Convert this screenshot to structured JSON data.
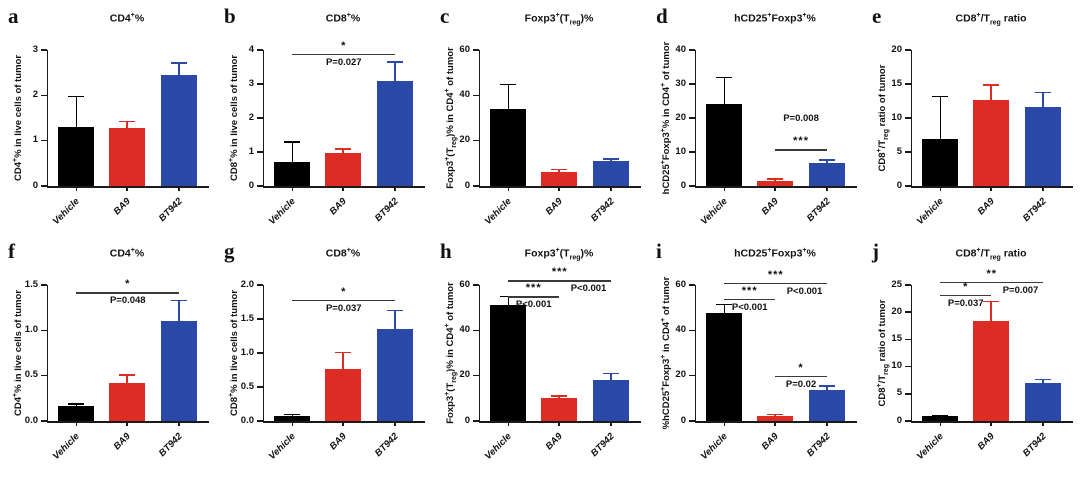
{
  "figure": {
    "background": "#ffffff",
    "bar_colors": [
      "#000000",
      "#dd2c23",
      "#2a49a7"
    ],
    "axis_color": "#1a1a1a"
  },
  "chart_data": [
    {
      "type": "bar",
      "panel_label": "a",
      "title": "CD4^+^%",
      "ylabel": "CD4^+^% in live cells of tumor",
      "categories": [
        "Vehicle",
        "BA9",
        "BT942"
      ],
      "values": [
        1.3,
        1.27,
        2.45
      ],
      "errors": [
        0.68,
        0.16,
        0.27
      ],
      "ylim": [
        0,
        3
      ],
      "yticks": [
        "0",
        "1",
        "2",
        "3"
      ],
      "significance": []
    },
    {
      "type": "bar",
      "panel_label": "b",
      "title": "CD8^+^%",
      "ylabel": "CD8^+^% in live cells of tumor",
      "categories": [
        "Vehicle",
        "BA9",
        "BT942"
      ],
      "values": [
        0.72,
        0.97,
        3.1
      ],
      "errors": [
        0.58,
        0.12,
        0.55
      ],
      "ylim": [
        0,
        4
      ],
      "yticks": [
        "0",
        "1",
        "2",
        "3",
        "4"
      ],
      "significance": [
        {
          "from": "Vehicle",
          "to": "BT942",
          "y": 3.88,
          "stars": "*",
          "p_label": "P=0.027",
          "p_position": "below-center"
        }
      ]
    },
    {
      "type": "bar",
      "panel_label": "c",
      "title": "Foxp3^+^(T~reg~)%",
      "ylabel": "Foxp3^+^(T~reg~)% in CD4^+^ of tumor",
      "categories": [
        "Vehicle",
        "BA9",
        "BT942"
      ],
      "values": [
        34,
        6,
        11
      ],
      "errors": [
        11,
        1.5,
        1
      ],
      "ylim": [
        0,
        60
      ],
      "yticks": [
        "0",
        "20",
        "40",
        "60"
      ],
      "significance": []
    },
    {
      "type": "bar",
      "panel_label": "d",
      "title": "hCD25^+^Foxp3^+^%",
      "ylabel": "hCD25^+^Foxp3^+^% in CD4^+^ of tumor",
      "categories": [
        "Vehicle",
        "BA9",
        "BT942"
      ],
      "values": [
        24,
        1.5,
        6.8
      ],
      "errors": [
        8,
        0.7,
        0.9
      ],
      "ylim": [
        0,
        40
      ],
      "yticks": [
        "0",
        "10",
        "20",
        "30",
        "40"
      ],
      "significance": [
        {
          "from": "BA9",
          "to": "BT942",
          "y": 10.8,
          "stars": "***",
          "p_label": "P=0.008",
          "p_position": "above-center"
        }
      ]
    },
    {
      "type": "bar",
      "panel_label": "e",
      "title": "CD8^+^/T~reg~ ratio",
      "ylabel": "CD8^+^/T~reg~ ratio of tumor",
      "categories": [
        "Vehicle",
        "BA9",
        "BT942"
      ],
      "values": [
        6.9,
        12.6,
        11.6
      ],
      "errors": [
        6.3,
        2.3,
        2.2
      ],
      "ylim": [
        0,
        20
      ],
      "yticks": [
        "0",
        "5",
        "10",
        "15",
        "20"
      ],
      "significance": []
    },
    {
      "type": "bar",
      "panel_label": "f",
      "title": "CD4^+^%",
      "ylabel": "CD4^+^% in live cells of tumor",
      "categories": [
        "Vehicle",
        "BA9",
        "BT942"
      ],
      "values": [
        0.16,
        0.42,
        1.1
      ],
      "errors": [
        0.03,
        0.09,
        0.23
      ],
      "ylim": [
        0,
        1.5
      ],
      "yticks": [
        "0.0",
        "0.5",
        "1.0",
        "1.5"
      ],
      "significance": [
        {
          "from": "Vehicle",
          "to": "BT942",
          "y": 1.42,
          "stars": "*",
          "p_label": "P=0.048",
          "p_position": "below-center"
        }
      ]
    },
    {
      "type": "bar",
      "panel_label": "g",
      "title": "CD8^+^%",
      "ylabel": "CD8^+^% in live cells of tumor",
      "categories": [
        "Vehicle",
        "BA9",
        "BT942"
      ],
      "values": [
        0.08,
        0.77,
        1.36
      ],
      "errors": [
        0.02,
        0.24,
        0.27
      ],
      "ylim": [
        0,
        2
      ],
      "yticks": [
        "0.0",
        "0.5",
        "1.0",
        "1.5",
        "2.0"
      ],
      "significance": [
        {
          "from": "Vehicle",
          "to": "BT942",
          "y": 1.78,
          "stars": "*",
          "p_label": "P=0.037",
          "p_position": "below-center"
        }
      ]
    },
    {
      "type": "bar",
      "panel_label": "h",
      "title": "Foxp3^+^(T~reg~)%",
      "ylabel": "Foxp3^+^(T~reg~)% in CD4^+^ of tumor",
      "categories": [
        "Vehicle",
        "BA9",
        "BT942"
      ],
      "values": [
        51,
        10,
        18
      ],
      "errors": [
        4,
        1.2,
        3
      ],
      "ylim": [
        0,
        60
      ],
      "yticks": [
        "0",
        "20",
        "40",
        "60"
      ],
      "significance": [
        {
          "from": "Vehicle",
          "to": "BT942",
          "y": 62,
          "stars": "***",
          "p_label": "P<0.001",
          "p_position": "right-below"
        },
        {
          "from": "Vehicle",
          "to": "BA9",
          "y": 55,
          "stars": "***",
          "p_label": "P<0.001",
          "p_position": "below-center"
        }
      ]
    },
    {
      "type": "bar",
      "panel_label": "i",
      "title": "hCD25^+^Foxp3^+^%",
      "ylabel": "%hCD25^+^Foxp3^+^ in CD4^+^ of tumor",
      "categories": [
        "Vehicle",
        "BA9",
        "BT942"
      ],
      "values": [
        47.5,
        2.2,
        13.8
      ],
      "errors": [
        4,
        0.8,
        1.7
      ],
      "ylim": [
        0,
        60
      ],
      "yticks": [
        "0",
        "20",
        "40",
        "60"
      ],
      "significance": [
        {
          "from": "Vehicle",
          "to": "BT942",
          "y": 61,
          "stars": "***",
          "p_label": "P<0.001",
          "p_position": "right-below"
        },
        {
          "from": "Vehicle",
          "to": "BA9",
          "y": 54,
          "stars": "***",
          "p_label": "P<0.001",
          "p_position": "below-center"
        },
        {
          "from": "BA9",
          "to": "BT942",
          "y": 20,
          "stars": "*",
          "p_label": "P=0.02",
          "p_position": "below-center"
        }
      ]
    },
    {
      "type": "bar",
      "panel_label": "j",
      "title": "CD8^+^/T~reg~ ratio",
      "ylabel": "CD8^+^/T~reg~ ratio of tumor",
      "categories": [
        "Vehicle",
        "BA9",
        "BT942"
      ],
      "values": [
        0.9,
        18.4,
        6.9
      ],
      "errors": [
        0.15,
        3.6,
        0.8
      ],
      "ylim": [
        0,
        25
      ],
      "yticks": [
        "0",
        "5",
        "10",
        "15",
        "20",
        "25"
      ],
      "significance": [
        {
          "from": "Vehicle",
          "to": "BT942",
          "y": 25.6,
          "stars": "**",
          "p_label": "P=0.007",
          "p_position": "right-below"
        },
        {
          "from": "Vehicle",
          "to": "BA9",
          "y": 23.2,
          "stars": "*",
          "p_label": "P=0.037",
          "p_position": "below-center"
        }
      ]
    }
  ]
}
